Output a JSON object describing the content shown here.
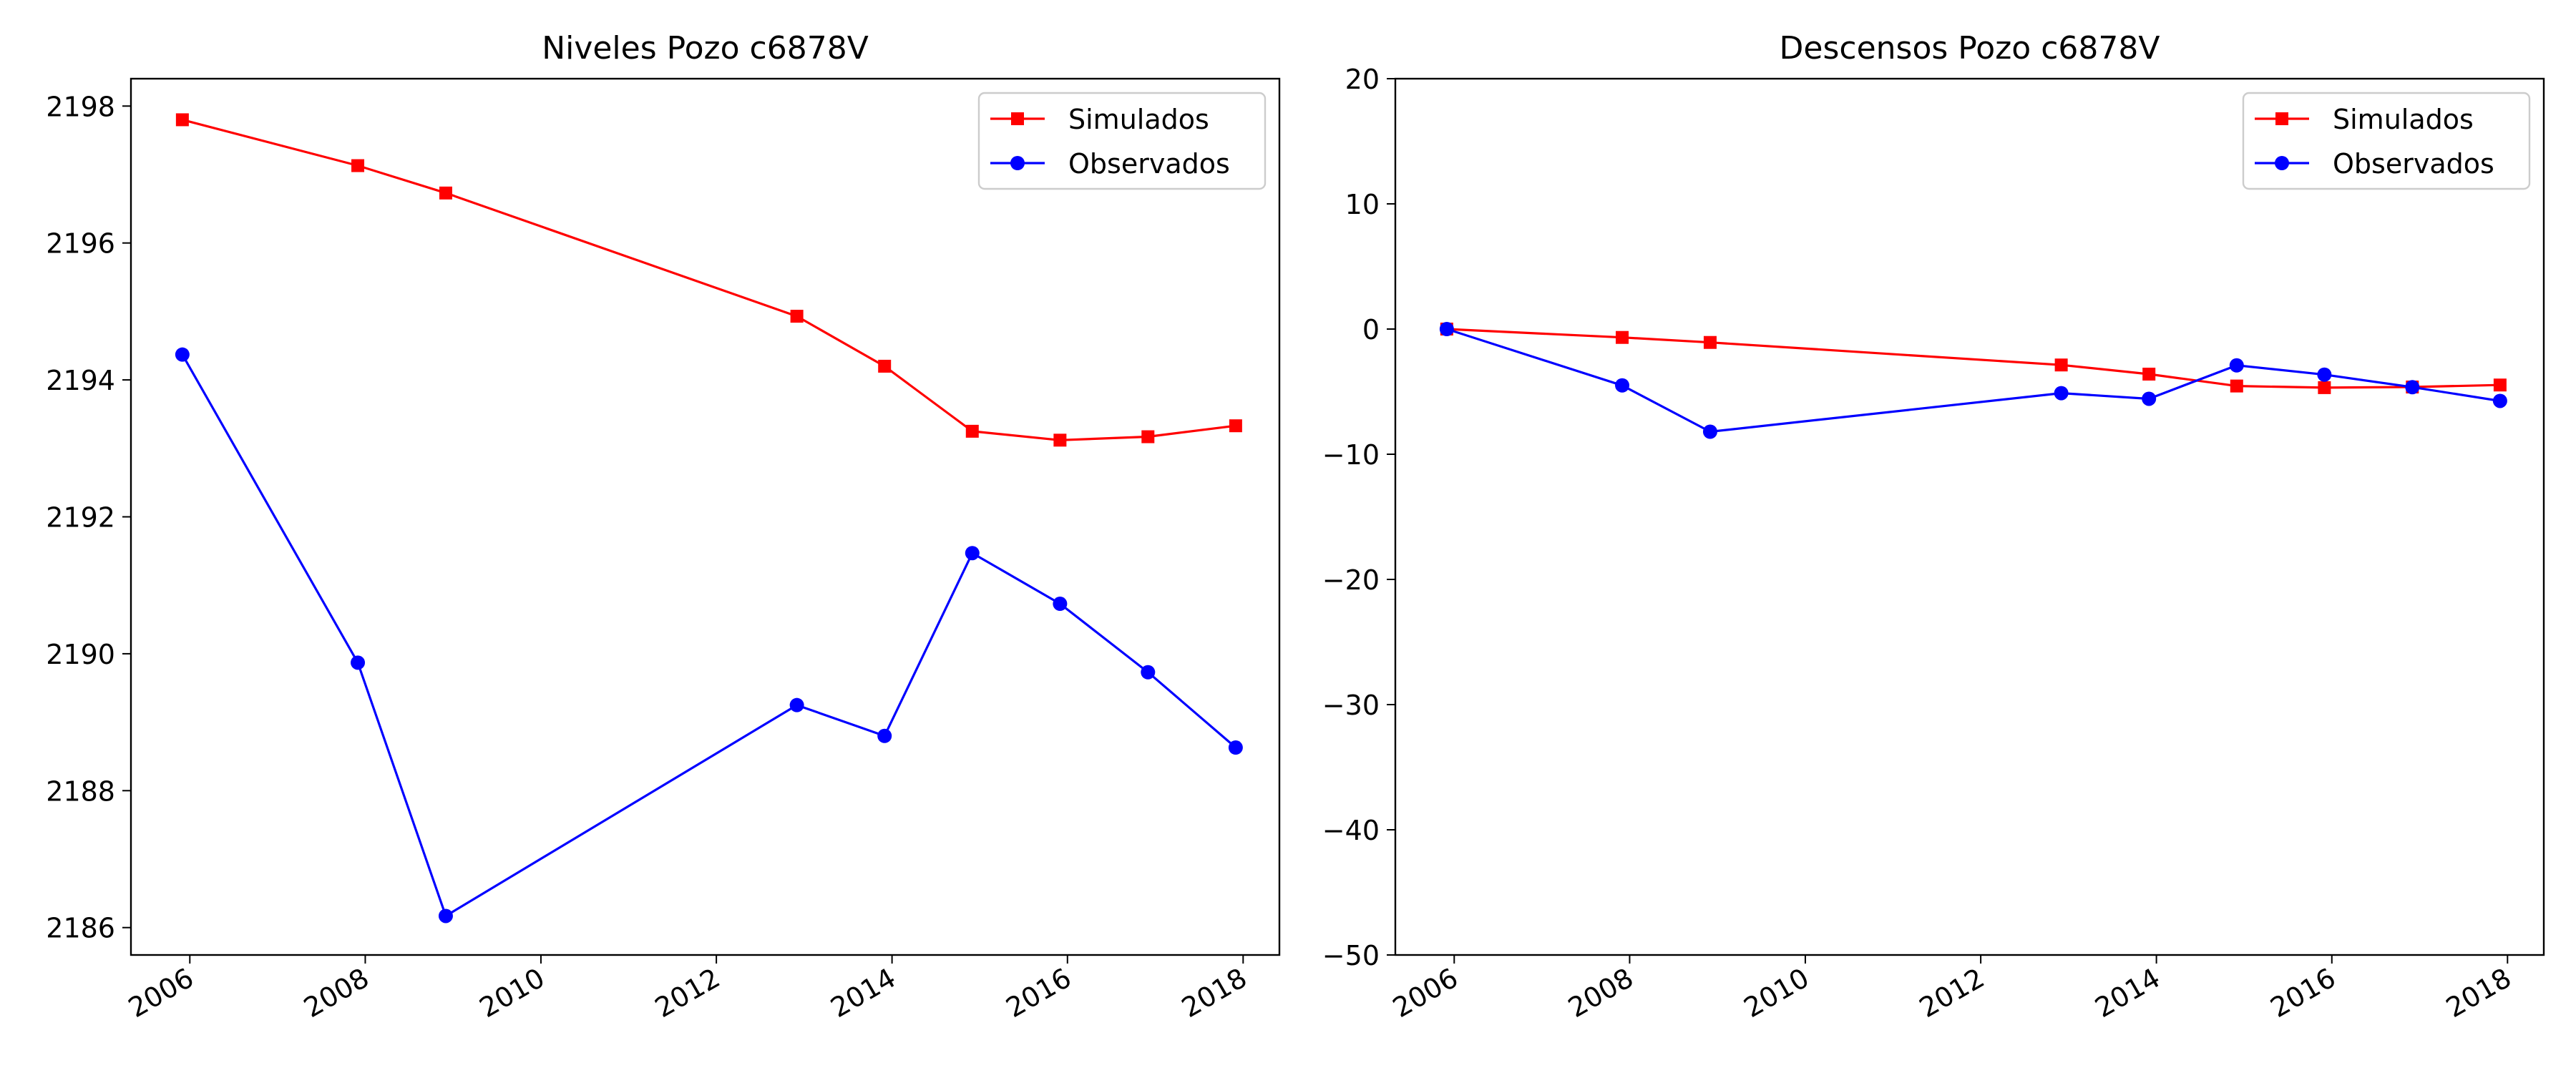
{
  "chart_data": [
    {
      "type": "line",
      "title": "Niveles Pozo c6878V",
      "xlabel": "",
      "ylabel": "",
      "x_is_date": true,
      "xlim": [
        "2005-05-01",
        "2018-06-01"
      ],
      "ylim": [
        2185.6,
        2198.4
      ],
      "x_ticks": [
        2006,
        2008,
        2010,
        2012,
        2014,
        2016,
        2018
      ],
      "y_ticks": [
        2186,
        2188,
        2190,
        2192,
        2194,
        2196,
        2198
      ],
      "grid": false,
      "legend_position": "upper right",
      "x": [
        "2005-12-01",
        "2007-12-01",
        "2008-12-01",
        "2012-12-01",
        "2013-12-01",
        "2014-12-01",
        "2015-12-01",
        "2016-12-01",
        "2017-12-01"
      ],
      "series": [
        {
          "name": "Simulados",
          "color": "#ff0000",
          "marker": "square",
          "values": [
            2197.8,
            2197.13,
            2196.73,
            2194.93,
            2194.2,
            2193.25,
            2193.12,
            2193.17,
            2193.33
          ]
        },
        {
          "name": "Observados",
          "color": "#0000ff",
          "marker": "circle",
          "values": [
            2194.37,
            2189.87,
            2186.17,
            2189.25,
            2188.8,
            2191.47,
            2190.73,
            2189.73,
            2188.63
          ]
        }
      ]
    },
    {
      "type": "line",
      "title": "Descensos Pozo c6878V",
      "xlabel": "",
      "ylabel": "",
      "x_is_date": true,
      "xlim": [
        "2005-05-01",
        "2018-06-01"
      ],
      "ylim": [
        -50,
        20
      ],
      "x_ticks": [
        2006,
        2008,
        2010,
        2012,
        2014,
        2016,
        2018
      ],
      "y_ticks": [
        -50,
        -40,
        -30,
        -20,
        -10,
        0,
        10,
        20
      ],
      "grid": false,
      "legend_position": "upper right",
      "x": [
        "2005-12-01",
        "2007-12-01",
        "2008-12-01",
        "2012-12-01",
        "2013-12-01",
        "2014-12-01",
        "2015-12-01",
        "2016-12-01",
        "2017-12-01"
      ],
      "series": [
        {
          "name": "Simulados",
          "color": "#ff0000",
          "marker": "square",
          "values": [
            0,
            -0.67,
            -1.07,
            -2.87,
            -3.6,
            -4.55,
            -4.68,
            -4.63,
            -4.47
          ]
        },
        {
          "name": "Observados",
          "color": "#0000ff",
          "marker": "circle",
          "values": [
            0,
            -4.5,
            -8.2,
            -5.12,
            -5.57,
            -2.9,
            -3.64,
            -4.64,
            -5.74
          ]
        }
      ]
    }
  ]
}
